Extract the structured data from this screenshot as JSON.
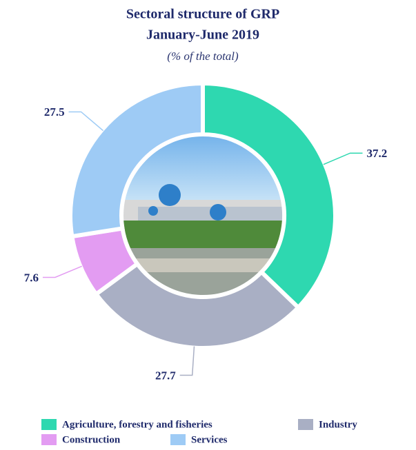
{
  "chart_data": {
    "type": "donut",
    "title": "Sectoral structure of GRP",
    "subtitle": "January-June 2019",
    "note": "(% of the total)",
    "series": [
      {
        "name": "Agriculture, forestry and fisheries",
        "color": "#2ed8b0",
        "values": [
          37.2
        ]
      },
      {
        "name": "Industry",
        "color": "#a9afc4",
        "values": [
          27.7
        ]
      },
      {
        "name": "Construction",
        "color": "#e39cf2",
        "values": [
          7.6
        ]
      },
      {
        "name": "Services",
        "color": "#9ecbf5",
        "values": [
          27.5
        ]
      }
    ]
  }
}
